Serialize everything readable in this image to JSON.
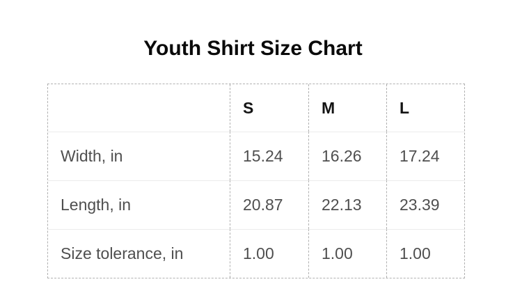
{
  "title": "Youth Shirt Size Chart",
  "size_chart": {
    "columns": [
      "S",
      "M",
      "L"
    ],
    "rows": [
      {
        "label": "Width, in",
        "values": [
          "15.24",
          "16.26",
          "17.24"
        ]
      },
      {
        "label": "Length, in",
        "values": [
          "20.87",
          "22.13",
          "23.39"
        ]
      },
      {
        "label": "Size tolerance, in",
        "values": [
          "1.00",
          "1.00",
          "1.00"
        ]
      }
    ]
  },
  "colors": {
    "background": "#ffffff",
    "title_text": "#0a0a0a",
    "header_text": "#141414",
    "cell_text": "#4f4f4f",
    "dashed_border": "#b0b0b0",
    "row_divider": "#ececec"
  }
}
